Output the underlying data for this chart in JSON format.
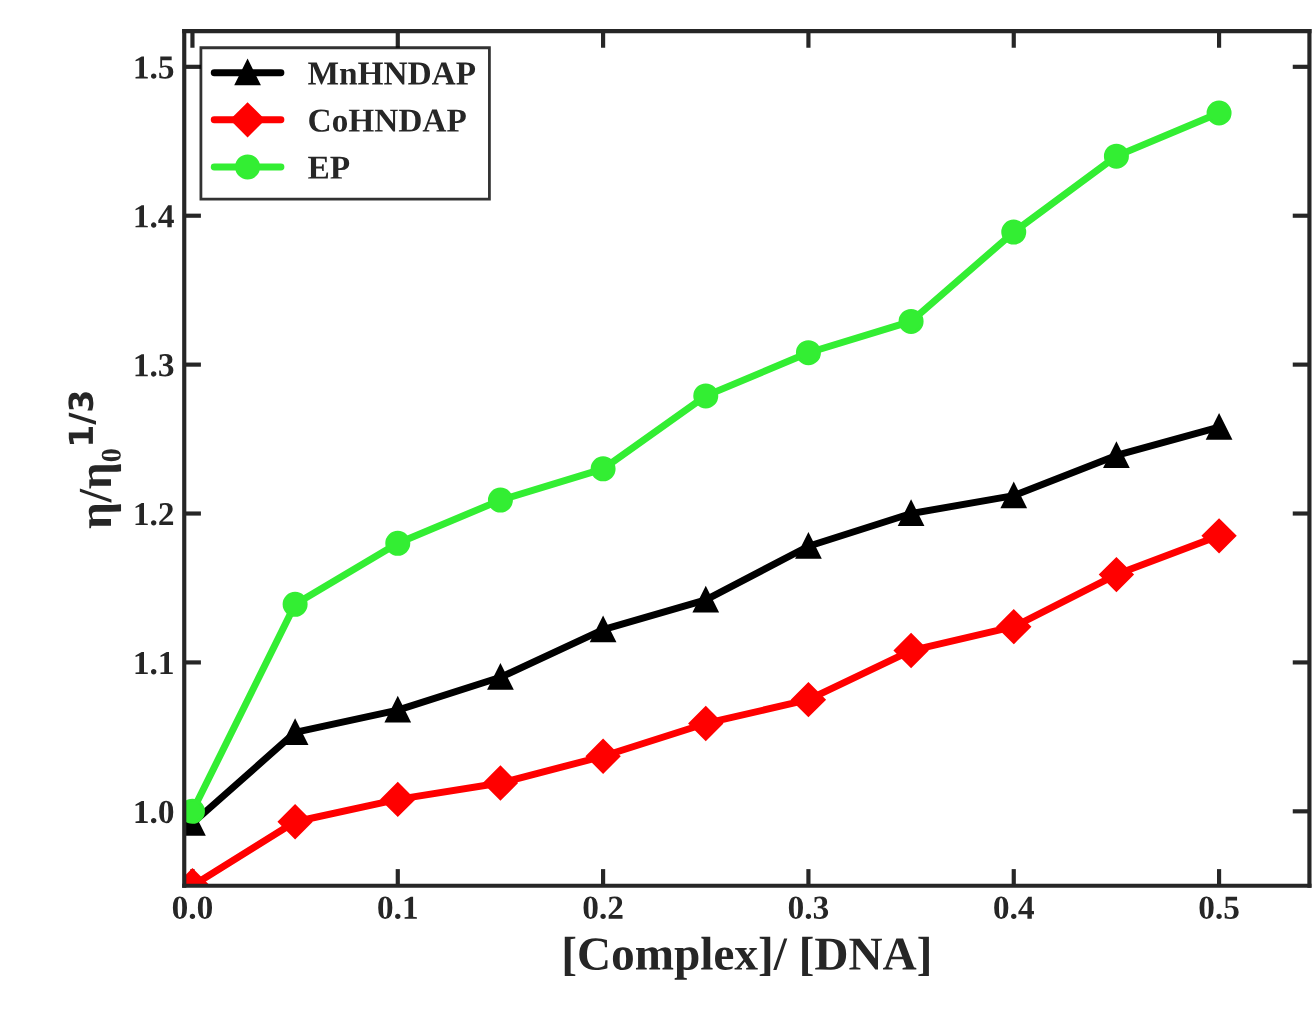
{
  "chart_data": {
    "type": "line",
    "xlabel": "[Complex]/ [DNA]",
    "ylabel": "η/η₀$^{1/3}$",
    "x": [
      0,
      0.05,
      0.1,
      0.15,
      0.2,
      0.25,
      0.3,
      0.35,
      0.4,
      0.45,
      0.5
    ],
    "series": [
      {
        "name": "MnHNDAP",
        "color": "#000000",
        "marker": "triangle",
        "values": [
          0.992,
          1.053,
          1.068,
          1.09,
          1.122,
          1.142,
          1.178,
          1.2,
          1.212,
          1.239,
          1.258
        ]
      },
      {
        "name": "CoHNDAP",
        "color": "#ff0000",
        "marker": "diamond",
        "values": [
          0.95,
          0.993,
          1.008,
          1.019,
          1.037,
          1.059,
          1.075,
          1.108,
          1.124,
          1.159,
          1.185
        ]
      },
      {
        "name": "EP",
        "color": "#33ee33",
        "marker": "circle",
        "values": [
          1.0,
          1.139,
          1.18,
          1.209,
          1.23,
          1.279,
          1.308,
          1.329,
          1.389,
          1.44,
          1.469
        ]
      }
    ],
    "xlim": [
      -0.004,
      0.544
    ],
    "ylim": [
      0.95,
      1.524
    ],
    "xticks": [
      {
        "value": 0,
        "label": "0.0"
      },
      0.1,
      0.2,
      0.3,
      0.4,
      0.5
    ],
    "yticks": [
      {
        "value": 1,
        "label": "1.0"
      },
      1.1,
      1.2,
      1.3,
      1.4,
      1.5
    ],
    "legend": "top left",
    "grid": false,
    "line_style": "solid"
  }
}
